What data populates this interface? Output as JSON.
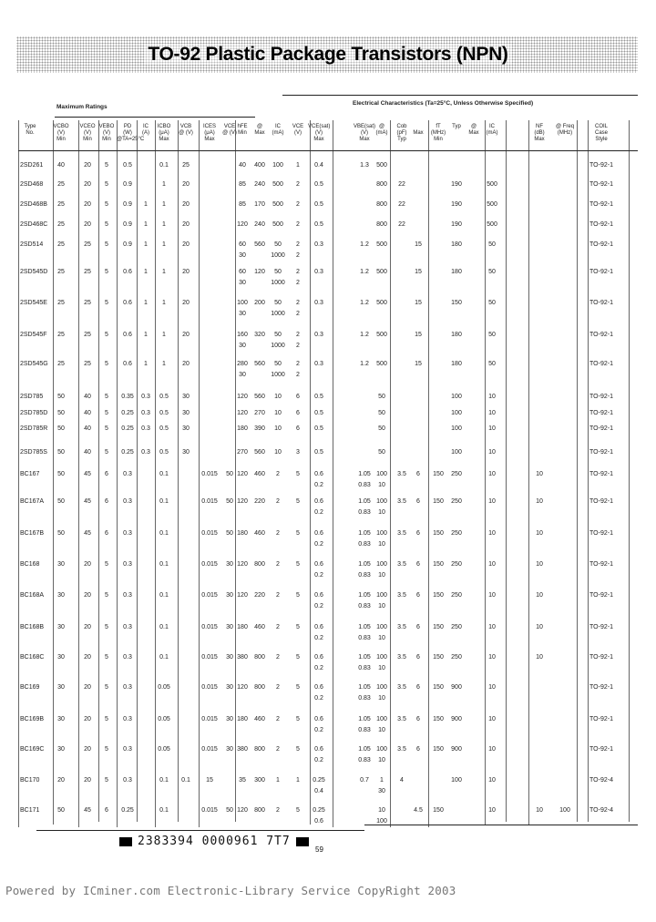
{
  "title": "TO-92 Plastic Package Transistors (NPN)",
  "groups": {
    "max_ratings": "Maximum Ratings",
    "electrical": "Electrical Characteristics (Ta=25°C, Unless Otherwise Specified)"
  },
  "columns": [
    "Type\nNo.",
    "VCBO\n(V)\nMin",
    "VCEO\n(V)\nMin",
    "VEBO\n(V)\nMin",
    "PD\n(W)\n@TA=25°C",
    "IC\n(A)",
    "ICBO\n(μA)\nMax",
    "VCB\n@ (V)",
    "ICES\n(μA)\nMax",
    "VCE\n@ (V)",
    "hFE\nMin",
    "@\nMax",
    "IC\n(mA)",
    "VCE\n(V)",
    "VCE(sat)\n(V)\nMax",
    "VBE(sat)\n(V)\nMax",
    "@\n(mA)",
    "Cob\n(pF)\nTyp",
    "\nMax",
    "fT\n(MHz)\nMin",
    "Typ",
    "@\nMax",
    "IC\n(mA)",
    "NF\n(dB)\nMax",
    "@ Freq\n(MHz)",
    "COIL\nCase\nStyle"
  ],
  "rows": [
    {
      "type": "2SD261",
      "v": [
        "40",
        "20",
        "5",
        "0.5",
        "",
        "0.1",
        "25",
        "",
        "",
        "40",
        "400",
        "100",
        "1",
        "0.4",
        "1.3",
        "500",
        "",
        "",
        "",
        "",
        "",
        "",
        "",
        "",
        "TO-92-1"
      ]
    },
    {
      "type": "2SD468",
      "v": [
        "25",
        "20",
        "5",
        "0.9",
        "",
        "1",
        "20",
        "",
        "",
        "85",
        "240",
        "500",
        "2",
        "0.5",
        "",
        "800",
        "22",
        "",
        "",
        "190",
        "",
        "500",
        "",
        "",
        "TO-92-1"
      ]
    },
    {
      "type": "2SD468B",
      "v": [
        "25",
        "20",
        "5",
        "0.9",
        "1",
        "1",
        "20",
        "",
        "",
        "85",
        "170",
        "500",
        "2",
        "0.5",
        "",
        "800",
        "22",
        "",
        "",
        "190",
        "",
        "500",
        "",
        "",
        "TO-92-1"
      ]
    },
    {
      "type": "2SD468C",
      "v": [
        "25",
        "20",
        "5",
        "0.9",
        "1",
        "1",
        "20",
        "",
        "",
        "120",
        "240",
        "500",
        "2",
        "0.5",
        "",
        "800",
        "22",
        "",
        "",
        "190",
        "",
        "500",
        "",
        "",
        "TO-92-1"
      ]
    },
    {
      "type": "2SD514",
      "v": [
        "25",
        "25",
        "5",
        "0.9",
        "1",
        "1",
        "20",
        "",
        "",
        "60\n30",
        "560",
        "50\n1000",
        "2\n2",
        "0.3",
        "1.2",
        "500",
        "",
        "15",
        "",
        "180",
        "",
        "50",
        "",
        "",
        "TO-92-1"
      ]
    },
    {
      "type": "2SD545D",
      "v": [
        "25",
        "25",
        "5",
        "0.6",
        "1",
        "1",
        "20",
        "",
        "",
        "60\n30",
        "120",
        "50\n1000",
        "2\n2",
        "0.3",
        "1.2",
        "500",
        "",
        "15",
        "",
        "180",
        "",
        "50",
        "",
        "",
        "TO-92-1"
      ]
    },
    {
      "type": "2SD545E",
      "v": [
        "25",
        "25",
        "5",
        "0.6",
        "1",
        "1",
        "20",
        "",
        "",
        "100\n30",
        "200",
        "50\n1000",
        "2\n2",
        "0.3",
        "1.2",
        "500",
        "",
        "15",
        "",
        "150",
        "",
        "50",
        "",
        "",
        "TO-92-1"
      ]
    },
    {
      "type": "2SD545F",
      "v": [
        "25",
        "25",
        "5",
        "0.6",
        "1",
        "1",
        "20",
        "",
        "",
        "160\n30",
        "320",
        "50\n1000",
        "2\n2",
        "0.3",
        "1.2",
        "500",
        "",
        "15",
        "",
        "180",
        "",
        "50",
        "",
        "",
        "TO-92-1"
      ]
    },
    {
      "type": "2SD545G",
      "v": [
        "25",
        "25",
        "5",
        "0.6",
        "1",
        "1",
        "20",
        "",
        "",
        "280\n30",
        "560",
        "50\n1000",
        "2\n2",
        "0.3",
        "1.2",
        "500",
        "",
        "15",
        "",
        "180",
        "",
        "50",
        "",
        "",
        "TO-92-1"
      ]
    },
    {
      "type": "2SD785",
      "v": [
        "50",
        "40",
        "5",
        "0.35",
        "0.3",
        "0.5",
        "30",
        "",
        "",
        "120",
        "560",
        "10",
        "6",
        "0.5",
        "",
        "50",
        "",
        "",
        "",
        "100",
        "",
        "10",
        "",
        "",
        "TO-92-1"
      ]
    },
    {
      "type": "2SD785D",
      "v": [
        "50",
        "40",
        "5",
        "0.25",
        "0.3",
        "0.5",
        "30",
        "",
        "",
        "120",
        "270",
        "10",
        "6",
        "0.5",
        "",
        "50",
        "",
        "",
        "",
        "100",
        "",
        "10",
        "",
        "",
        "TO-92-1"
      ]
    },
    {
      "type": "2SD785R",
      "v": [
        "50",
        "40",
        "5",
        "0.25",
        "0.3",
        "0.5",
        "30",
        "",
        "",
        "180",
        "390",
        "10",
        "6",
        "0.5",
        "",
        "50",
        "",
        "",
        "",
        "100",
        "",
        "10",
        "",
        "",
        "TO-92-1"
      ]
    },
    {
      "type": "2SD785S",
      "v": [
        "50",
        "40",
        "5",
        "0.25",
        "0.3",
        "0.5",
        "30",
        "",
        "",
        "270",
        "560",
        "10",
        "3",
        "0.5",
        "",
        "50",
        "",
        "",
        "",
        "100",
        "",
        "10",
        "",
        "",
        "TO-92-1"
      ]
    },
    {
      "type": "BC167",
      "v": [
        "50",
        "45",
        "6",
        "0.3",
        "",
        "0.1",
        "",
        "0.015",
        "50",
        "120",
        "460",
        "2",
        "5",
        "0.6\n0.2",
        "1.05\n0.83",
        "100\n10",
        "3.5",
        "6",
        "150",
        "250",
        "",
        "10",
        "10",
        "",
        "TO-92-1"
      ]
    },
    {
      "type": "BC167A",
      "v": [
        "50",
        "45",
        "6",
        "0.3",
        "",
        "0.1",
        "",
        "0.015",
        "50",
        "120",
        "220",
        "2",
        "5",
        "0.6\n0.2",
        "1.05\n0.83",
        "100\n10",
        "3.5",
        "6",
        "150",
        "250",
        "",
        "10",
        "10",
        "",
        "TO-92-1"
      ]
    },
    {
      "type": "BC167B",
      "v": [
        "50",
        "45",
        "6",
        "0.3",
        "",
        "0.1",
        "",
        "0.015",
        "50",
        "180",
        "460",
        "2",
        "5",
        "0.6\n0.2",
        "1.05\n0.83",
        "100\n10",
        "3.5",
        "6",
        "150",
        "250",
        "",
        "10",
        "10",
        "",
        "TO-92-1"
      ]
    },
    {
      "type": "BC168",
      "v": [
        "30",
        "20",
        "5",
        "0.3",
        "",
        "0.1",
        "",
        "0.015",
        "30",
        "120",
        "800",
        "2",
        "5",
        "0.6\n0.2",
        "1.05\n0.83",
        "100\n10",
        "3.5",
        "6",
        "150",
        "250",
        "",
        "10",
        "10",
        "",
        "TO-92-1"
      ]
    },
    {
      "type": "BC168A",
      "v": [
        "30",
        "20",
        "5",
        "0.3",
        "",
        "0.1",
        "",
        "0.015",
        "30",
        "120",
        "220",
        "2",
        "5",
        "0.6\n0.2",
        "1.05\n0.83",
        "100\n10",
        "3.5",
        "6",
        "150",
        "250",
        "",
        "10",
        "10",
        "",
        "TO-92-1"
      ]
    },
    {
      "type": "BC168B",
      "v": [
        "30",
        "20",
        "5",
        "0.3",
        "",
        "0.1",
        "",
        "0.015",
        "30",
        "180",
        "460",
        "2",
        "5",
        "0.6\n0.2",
        "1.05\n0.83",
        "100\n10",
        "3.5",
        "6",
        "150",
        "250",
        "",
        "10",
        "10",
        "",
        "TO-92-1"
      ]
    },
    {
      "type": "BC168C",
      "v": [
        "30",
        "20",
        "5",
        "0.3",
        "",
        "0.1",
        "",
        "0.015",
        "30",
        "380",
        "800",
        "2",
        "5",
        "0.6\n0.2",
        "1.05\n0.83",
        "100\n10",
        "3.5",
        "6",
        "150",
        "250",
        "",
        "10",
        "10",
        "",
        "TO-92-1"
      ]
    },
    {
      "type": "BC169",
      "v": [
        "30",
        "20",
        "5",
        "0.3",
        "",
        "0.05",
        "",
        "0.015",
        "30",
        "120",
        "800",
        "2",
        "5",
        "0.6\n0.2",
        "1.05\n0.83",
        "100\n10",
        "3.5",
        "6",
        "150",
        "900",
        "",
        "10",
        "",
        "",
        "TO-92-1"
      ]
    },
    {
      "type": "BC169B",
      "v": [
        "30",
        "20",
        "5",
        "0.3",
        "",
        "0.05",
        "",
        "0.015",
        "30",
        "180",
        "460",
        "2",
        "5",
        "0.6\n0.2",
        "1.05\n0.83",
        "100\n10",
        "3.5",
        "6",
        "150",
        "900",
        "",
        "10",
        "",
        "",
        "TO-92-1"
      ]
    },
    {
      "type": "BC169C",
      "v": [
        "30",
        "20",
        "5",
        "0.3",
        "",
        "0.05",
        "",
        "0.015",
        "30",
        "380",
        "800",
        "2",
        "5",
        "0.6\n0.2",
        "1.05\n0.83",
        "100\n10",
        "3.5",
        "6",
        "150",
        "900",
        "",
        "10",
        "",
        "",
        "TO-92-1"
      ]
    },
    {
      "type": "BC170",
      "v": [
        "20",
        "20",
        "5",
        "0.3",
        "",
        "0.1",
        "0.1",
        "15",
        "",
        "35",
        "300",
        "1",
        "1",
        "0.25\n0.4",
        "0.7",
        "1\n30",
        "4",
        "",
        "",
        "100",
        "",
        "10",
        "",
        "",
        "TO-92-4"
      ]
    },
    {
      "type": "BC171",
      "v": [
        "50",
        "45",
        "6",
        "0.25",
        "",
        "0.1",
        "",
        "0.015",
        "50",
        "120",
        "800",
        "2",
        "5",
        "0.25\n0.6",
        "",
        "10\n100",
        "",
        "4.5",
        "150",
        "",
        "",
        "10",
        "10",
        "100",
        "TO-92-4"
      ]
    }
  ],
  "footer": {
    "code": "2383394 0000961 7T7",
    "page": "59",
    "powered_by": "Powered by ICminer.com Electronic-Library Service CopyRight 2003"
  }
}
